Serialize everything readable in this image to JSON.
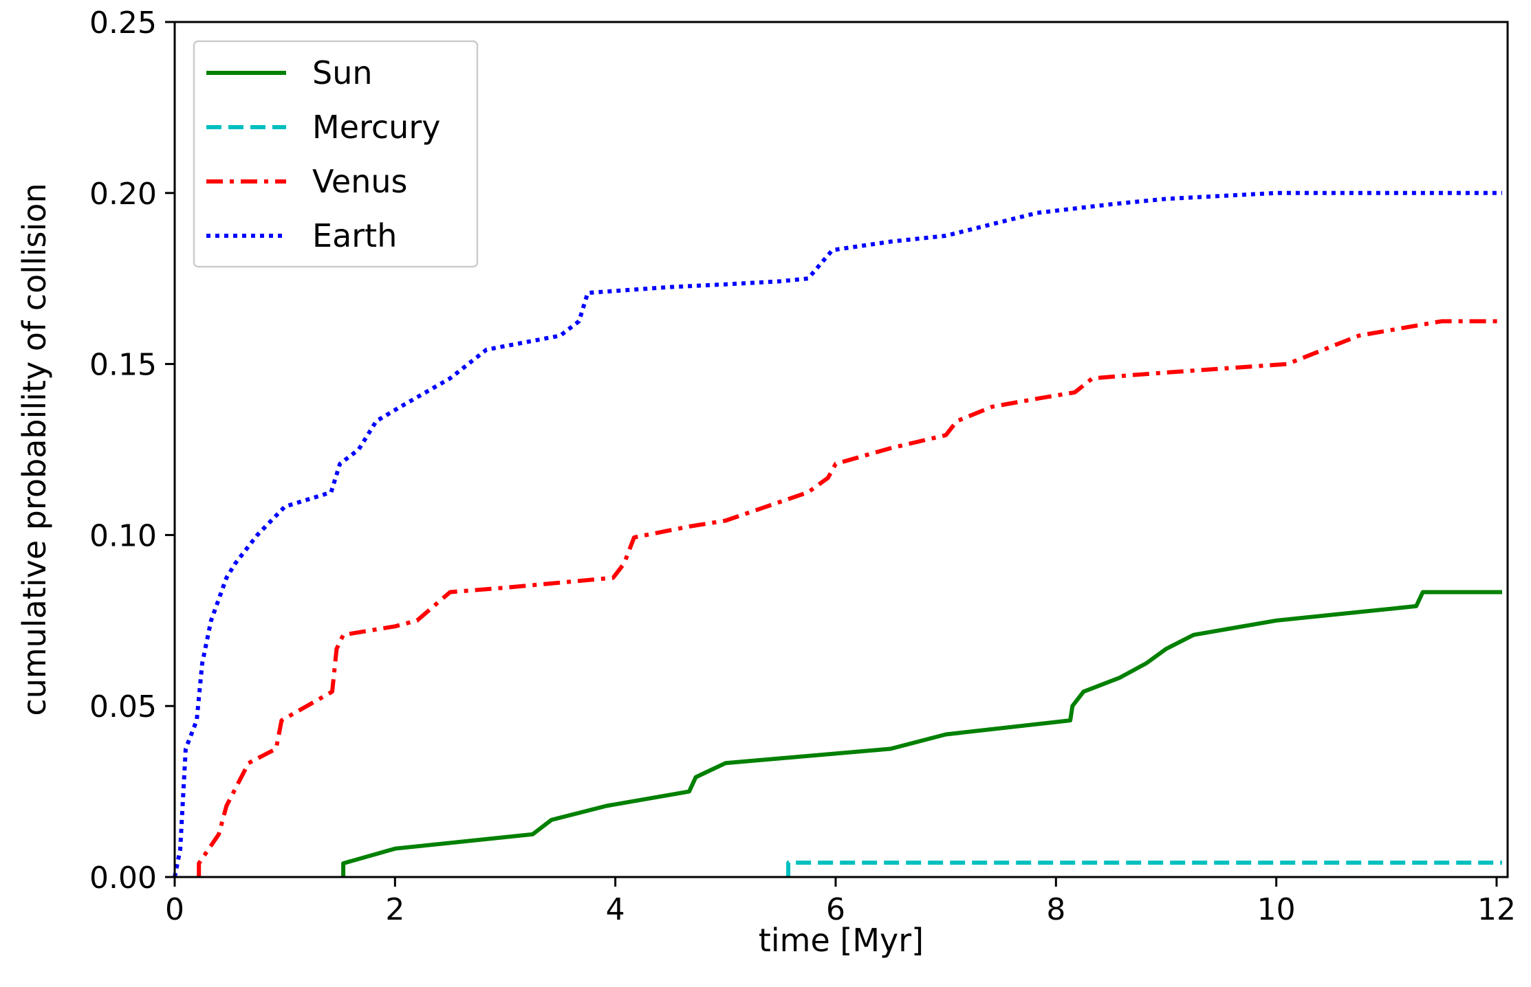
{
  "chart_data": {
    "type": "line",
    "title": "",
    "xlabel": "time [Myr]",
    "ylabel": "cumulative probability of collision",
    "xlim": [
      0,
      12.1
    ],
    "ylim": [
      0,
      0.25
    ],
    "xticks": [
      0,
      2,
      4,
      6,
      8,
      10,
      12
    ],
    "xtick_labels": [
      "0",
      "2",
      "4",
      "6",
      "8",
      "10",
      "12"
    ],
    "yticks": [
      0,
      0.05,
      0.1,
      0.15,
      0.2,
      0.25
    ],
    "ytick_labels": [
      "0.00",
      "0.05",
      "0.10",
      "0.15",
      "0.20",
      "0.25"
    ],
    "grid": false,
    "legend_position": "top-left",
    "series": [
      {
        "name": "Sun",
        "color": "#008000",
        "style": "solid",
        "points": [
          [
            1.53,
            0
          ],
          [
            1.53,
            0.004
          ],
          [
            2.0,
            0.0083
          ],
          [
            3.25,
            0.0125
          ],
          [
            3.42,
            0.0167
          ],
          [
            3.92,
            0.0208
          ],
          [
            4.67,
            0.025
          ],
          [
            4.73,
            0.0292
          ],
          [
            5.0,
            0.0333
          ],
          [
            6.5,
            0.0375
          ],
          [
            7.0,
            0.0417
          ],
          [
            8.13,
            0.0458
          ],
          [
            8.15,
            0.05
          ],
          [
            8.25,
            0.0542
          ],
          [
            8.58,
            0.0583
          ],
          [
            8.82,
            0.0625
          ],
          [
            9.0,
            0.0667
          ],
          [
            9.25,
            0.0708
          ],
          [
            10.0,
            0.075
          ],
          [
            11.27,
            0.0792
          ],
          [
            11.33,
            0.0833
          ],
          [
            12.05,
            0.0833
          ]
        ]
      },
      {
        "name": "Mercury",
        "color": "#00bfbf",
        "style": "dashed",
        "points": [
          [
            5.57,
            0
          ],
          [
            5.57,
            0.0042
          ],
          [
            12.05,
            0.0042
          ]
        ]
      },
      {
        "name": "Venus",
        "color": "#ff0000",
        "style": "dashdot",
        "points": [
          [
            0.22,
            0
          ],
          [
            0.22,
            0.004
          ],
          [
            0.4,
            0.0125
          ],
          [
            0.47,
            0.0208
          ],
          [
            0.67,
            0.0333
          ],
          [
            0.92,
            0.0375
          ],
          [
            0.97,
            0.0458
          ],
          [
            1.43,
            0.0542
          ],
          [
            1.47,
            0.0667
          ],
          [
            1.53,
            0.0708
          ],
          [
            2.0,
            0.0733
          ],
          [
            2.2,
            0.075
          ],
          [
            2.5,
            0.0833
          ],
          [
            3.0,
            0.0846
          ],
          [
            3.98,
            0.0875
          ],
          [
            4.08,
            0.0917
          ],
          [
            4.17,
            0.0993
          ],
          [
            4.67,
            0.1025
          ],
          [
            5.0,
            0.1042
          ],
          [
            5.75,
            0.1125
          ],
          [
            5.93,
            0.1167
          ],
          [
            6.0,
            0.1208
          ],
          [
            6.5,
            0.1254
          ],
          [
            7.0,
            0.1292
          ],
          [
            7.1,
            0.1333
          ],
          [
            7.42,
            0.1375
          ],
          [
            7.85,
            0.14
          ],
          [
            8.17,
            0.1417
          ],
          [
            8.33,
            0.1458
          ],
          [
            8.67,
            0.1467
          ],
          [
            9.0,
            0.1475
          ],
          [
            10.1,
            0.15
          ],
          [
            10.75,
            0.1583
          ],
          [
            11.5,
            0.1625
          ],
          [
            12.05,
            0.1625
          ]
        ]
      },
      {
        "name": "Earth",
        "color": "#0000ff",
        "style": "dotted",
        "points": [
          [
            0.0,
            0
          ],
          [
            0.05,
            0.008
          ],
          [
            0.1,
            0.0375
          ],
          [
            0.2,
            0.0458
          ],
          [
            0.25,
            0.0625
          ],
          [
            0.33,
            0.075
          ],
          [
            0.47,
            0.0875
          ],
          [
            0.55,
            0.0917
          ],
          [
            0.75,
            0.1
          ],
          [
            1.0,
            0.1083
          ],
          [
            1.42,
            0.1125
          ],
          [
            1.5,
            0.1208
          ],
          [
            1.67,
            0.125
          ],
          [
            1.83,
            0.1333
          ],
          [
            2.05,
            0.1375
          ],
          [
            2.5,
            0.1458
          ],
          [
            2.83,
            0.1542
          ],
          [
            3.5,
            0.1583
          ],
          [
            3.67,
            0.1625
          ],
          [
            3.75,
            0.1708
          ],
          [
            4.5,
            0.1725
          ],
          [
            5.0,
            0.1733
          ],
          [
            5.5,
            0.1742
          ],
          [
            5.75,
            0.175
          ],
          [
            5.97,
            0.1833
          ],
          [
            6.5,
            0.1858
          ],
          [
            7.0,
            0.1875
          ],
          [
            7.83,
            0.1942
          ],
          [
            8.5,
            0.1967
          ],
          [
            9.0,
            0.1983
          ],
          [
            10.0,
            0.2
          ],
          [
            12.05,
            0.2
          ]
        ]
      }
    ]
  }
}
